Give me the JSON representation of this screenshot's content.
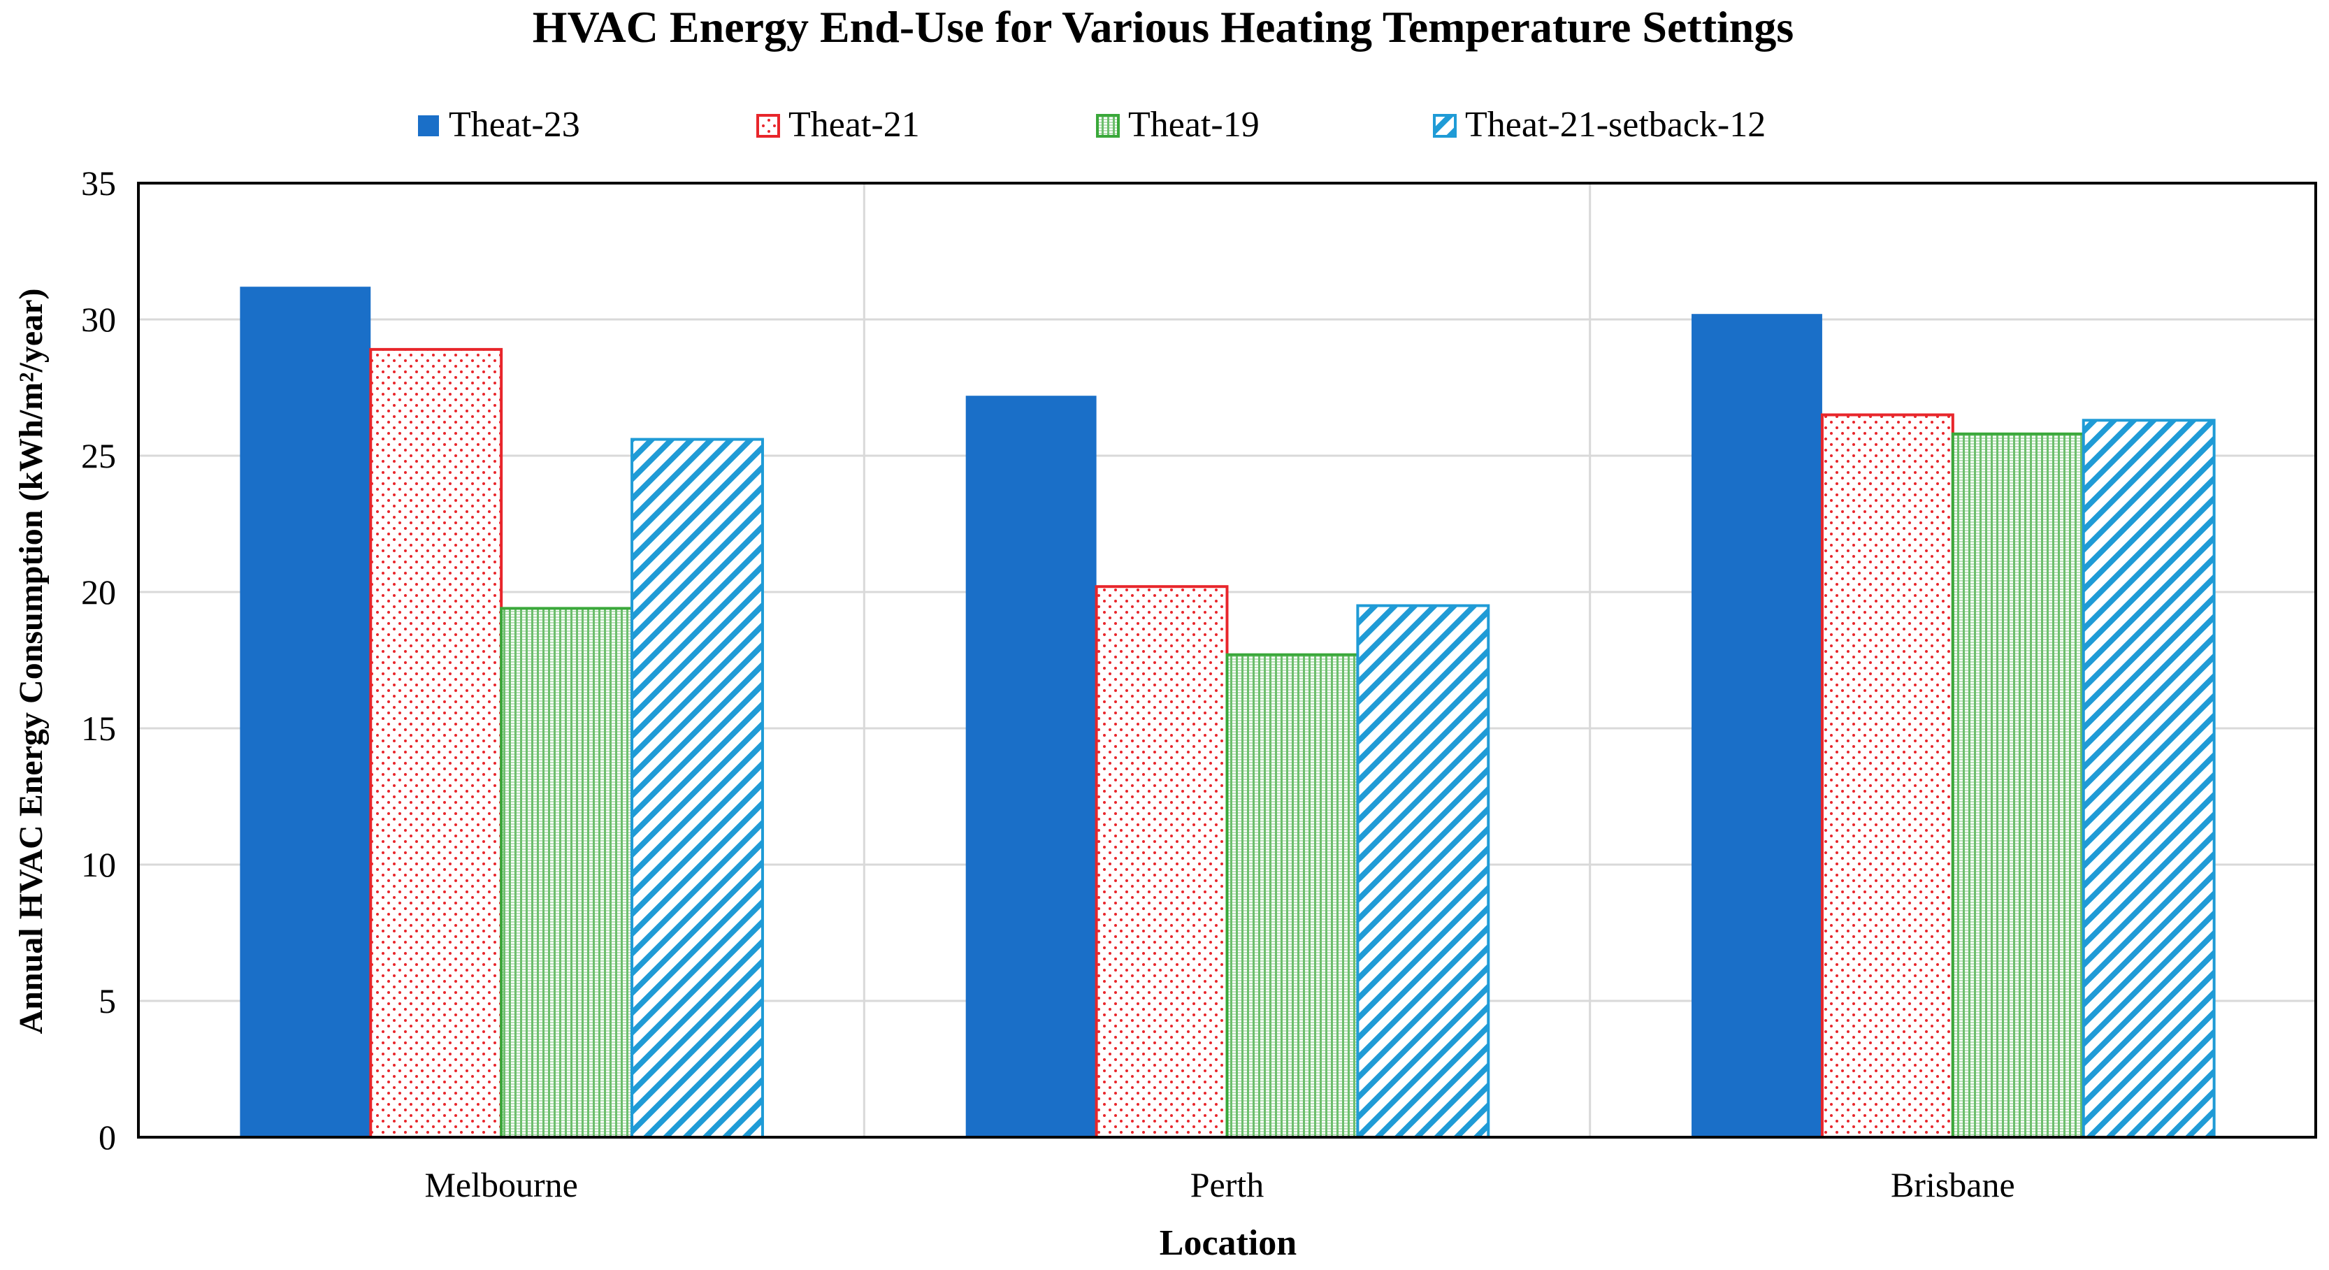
{
  "chart_data": {
    "type": "bar",
    "title": "HVAC Energy End-Use for Various Heating Temperature Settings",
    "xlabel": "Location",
    "ylabel": "Annual HVAC Energy Consumption (kWh/m²/year)",
    "categories": [
      "Melbourne",
      "Perth",
      "Brisbane"
    ],
    "ylim": [
      0,
      35
    ],
    "yticks": [
      0,
      5,
      10,
      15,
      20,
      25,
      30,
      35
    ],
    "grid": true,
    "legend_position": "top-center",
    "series": [
      {
        "name": "Theat-23",
        "values": [
          31.2,
          27.2,
          30.2
        ],
        "color": "#1a6fc8",
        "fill": "solid"
      },
      {
        "name": "Theat-21",
        "values": [
          28.9,
          20.2,
          26.5
        ],
        "color": "#e8262b",
        "fill": "dots"
      },
      {
        "name": "Theat-19",
        "values": [
          19.4,
          17.7,
          25.8
        ],
        "color": "#3aa83a",
        "fill": "fine-vertical"
      },
      {
        "name": "Theat-21-setback-12",
        "values": [
          25.6,
          19.5,
          26.3
        ],
        "color": "#1f9bd6",
        "fill": "diagonal"
      }
    ]
  }
}
